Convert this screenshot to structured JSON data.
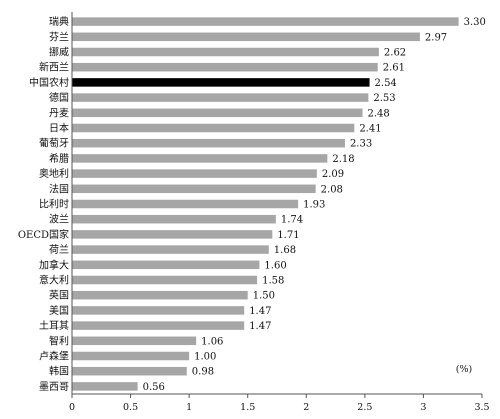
{
  "chart_data": {
    "type": "bar",
    "orientation": "horizontal",
    "categories": [
      "瑞典",
      "芬兰",
      "挪威",
      "新西兰",
      "中国农村",
      "德国",
      "丹麦",
      "日本",
      "葡萄牙",
      "希腊",
      "奥地利",
      "法国",
      "比利时",
      "波兰",
      "OECD国家",
      "荷兰",
      "加拿大",
      "意大利",
      "英国",
      "美国",
      "土耳其",
      "智利",
      "卢森堡",
      "韩国",
      "墨西哥"
    ],
    "values": [
      3.3,
      2.97,
      2.62,
      2.61,
      2.54,
      2.53,
      2.48,
      2.41,
      2.33,
      2.18,
      2.09,
      2.08,
      1.93,
      1.74,
      1.71,
      1.68,
      1.6,
      1.58,
      1.5,
      1.47,
      1.47,
      1.06,
      1.0,
      0.98,
      0.56
    ],
    "value_labels": [
      "3.30",
      "2.97",
      "2.62",
      "2.61",
      "2.54",
      "2.53",
      "2.48",
      "2.41",
      "2.33",
      "2.18",
      "2.09",
      "2.08",
      "1.93",
      "1.74",
      "1.71",
      "1.68",
      "1.60",
      "1.58",
      "1.50",
      "1.47",
      "1.47",
      "1.06",
      "1.00",
      "0.98",
      "0.56"
    ],
    "highlight_category": "中国农村",
    "xlim": [
      0,
      3.5
    ],
    "xticks": [
      "0",
      "0.5",
      "1",
      "1.5",
      "2",
      "2.5",
      "3",
      "3.5"
    ],
    "unit_label": "(%)",
    "grid": false,
    "colors": {
      "bar": "#a6a6a6",
      "highlight": "#000000",
      "axis": "#555555"
    }
  }
}
